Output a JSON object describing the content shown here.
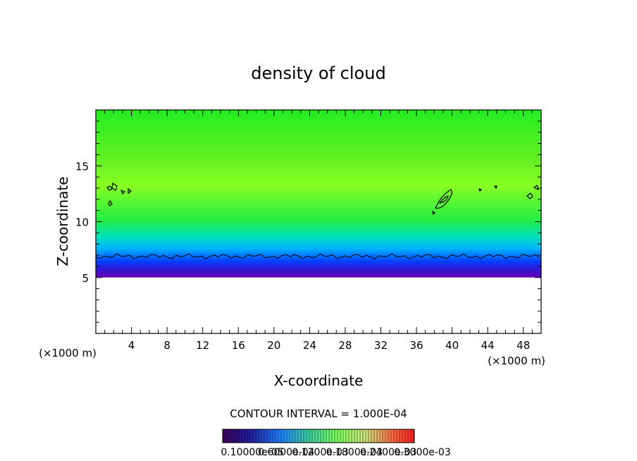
{
  "chart_data": {
    "type": "heatmap",
    "title": "density of cloud",
    "xlabel": "X-coordinate",
    "ylabel": "Z-coordinate",
    "x_unit_left": "(×1000 m)",
    "x_unit_right": "(×1000 m)",
    "xlim": [
      0,
      50
    ],
    "ylim": [
      0,
      20
    ],
    "x_ticks": [
      4,
      8,
      12,
      16,
      20,
      24,
      28,
      32,
      36,
      40,
      44,
      48
    ],
    "y_ticks": [
      5,
      10,
      15
    ],
    "cloud_base_z": 5,
    "contour_line_z": 6.9,
    "contour_interval_text": "CONTOUR INTERVAL = 1.000E-04",
    "colorbar_labels_text": "0.1000e-05",
    "colorbar_label_values": [
      "0.10000e-05",
      "0.6000e-04",
      "0.1200e-03",
      "0.1800e-03",
      "0.2400e-03",
      "0.3000e-03"
    ],
    "colors": {
      "low": "#6a00b8",
      "mid_low": "#0044ff",
      "mid": "#00c0ff",
      "high": "#22ee22",
      "top": "#66ff33"
    }
  }
}
